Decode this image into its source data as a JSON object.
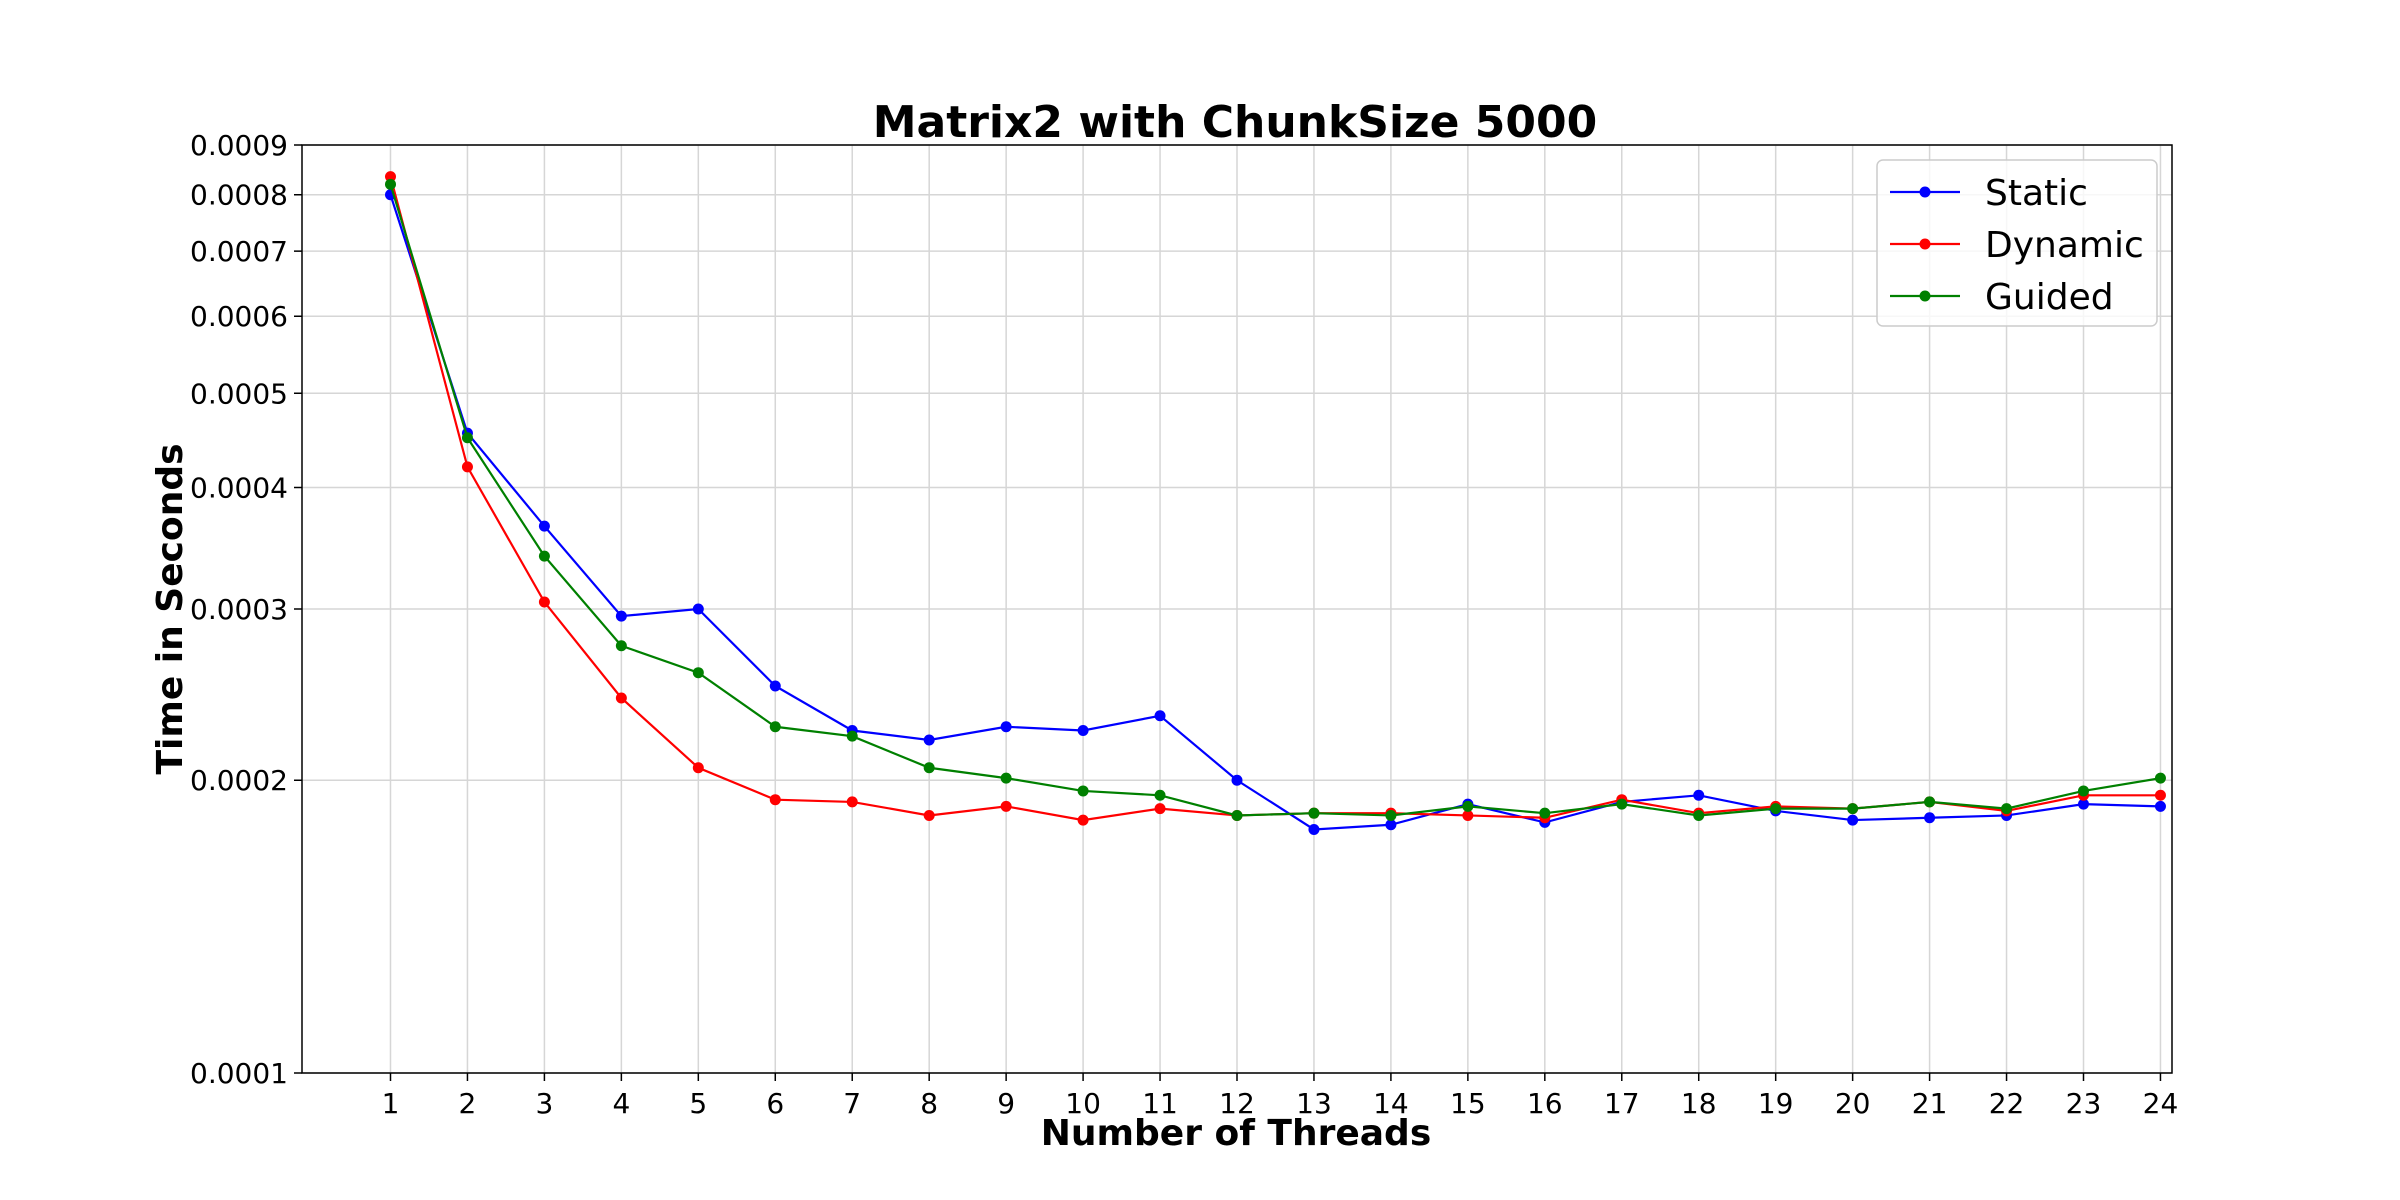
{
  "chart_data": {
    "type": "line",
    "title": "Matrix2 with ChunkSize 5000",
    "xlabel": "Number of Threads",
    "ylabel": "Time in Seconds",
    "yscale": "log",
    "ylim": [
      0.0001,
      0.0009
    ],
    "xlim": [
      -0.15,
      24.15
    ],
    "x": [
      1,
      2,
      3,
      4,
      5,
      6,
      7,
      8,
      9,
      10,
      11,
      12,
      13,
      14,
      15,
      16,
      17,
      18,
      19,
      20,
      21,
      22,
      23,
      24
    ],
    "x_tick_labels": [
      "1",
      "2",
      "3",
      "4",
      "5",
      "6",
      "7",
      "8",
      "9",
      "10",
      "11",
      "12",
      "13",
      "14",
      "15",
      "16",
      "17",
      "18",
      "19",
      "20",
      "21",
      "22",
      "23",
      "24"
    ],
    "y_ticks": [
      0.0001,
      0.0002,
      0.0003,
      0.0004,
      0.0005,
      0.0006,
      0.0007,
      0.0008,
      0.0009
    ],
    "y_tick_labels": [
      "0.0001",
      "0.0002",
      "0.0003",
      "0.0004",
      "0.0005",
      "0.0006",
      "0.0007",
      "0.0008",
      "0.0009"
    ],
    "grid": true,
    "legend_position": "top-right",
    "series": [
      {
        "name": "Static",
        "color": "#0000ff",
        "values": [
          0.0008,
          0.000455,
          0.000365,
          0.000295,
          0.0003,
          0.00025,
          0.000225,
          0.00022,
          0.000227,
          0.000225,
          0.000233,
          0.0002,
          0.000178,
          0.00018,
          0.000189,
          0.000181,
          0.00019,
          0.000193,
          0.000186,
          0.000182,
          0.000183,
          0.000184,
          0.000189,
          0.000188
        ]
      },
      {
        "name": "Dynamic",
        "color": "#ff0000",
        "values": [
          0.000835,
          0.00042,
          0.000305,
          0.000243,
          0.000206,
          0.000191,
          0.00019,
          0.000184,
          0.000188,
          0.000182,
          0.000187,
          0.000184,
          0.000185,
          0.000185,
          0.000184,
          0.000183,
          0.000191,
          0.000185,
          0.000188,
          0.000187,
          0.00019,
          0.000186,
          0.000193,
          0.000193
        ]
      },
      {
        "name": "Guided",
        "color": "#008000",
        "values": [
          0.00082,
          0.00045,
          0.00034,
          0.000275,
          0.000258,
          0.000227,
          0.000222,
          0.000206,
          0.000201,
          0.000195,
          0.000193,
          0.000184,
          0.000185,
          0.000184,
          0.000188,
          0.000185,
          0.000189,
          0.000184,
          0.000187,
          0.000187,
          0.00019,
          0.000187,
          0.000195,
          0.000201
        ]
      }
    ]
  }
}
